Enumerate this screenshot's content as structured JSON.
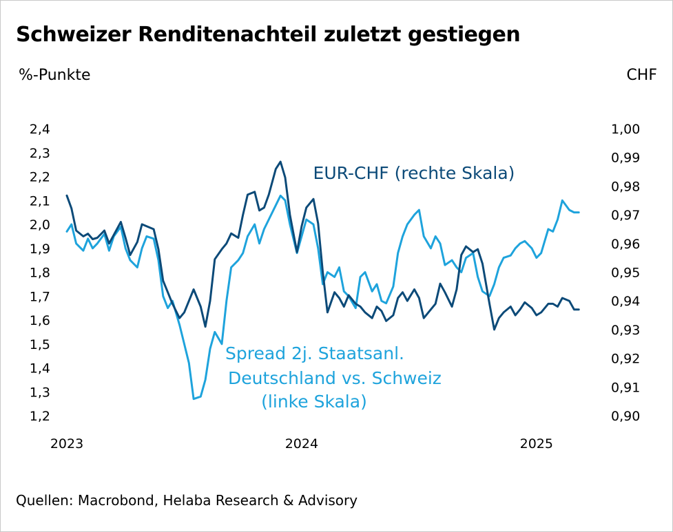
{
  "title": "Schweizer Renditenachteil zuletzt gestiegen",
  "left_unit": "%-Punkte",
  "right_unit": "CHF",
  "source": "Quellen: Macrobond, Helaba Research & Advisory",
  "colors": {
    "eurchf": "#0c4a78",
    "spread": "#1ea3dc",
    "text": "#000000"
  },
  "chart_data": {
    "type": "line",
    "title": "Schweizer Renditenachteil zuletzt gestiegen",
    "x_ticks": [
      "2023",
      "2024",
      "2025"
    ],
    "x_tick_positions": [
      2023.0,
      2024.0,
      2025.0
    ],
    "xlim": [
      2023.0,
      2025.2
    ],
    "y_left": {
      "label": "%-Punkte",
      "lim": [
        1.2,
        2.4
      ],
      "ticks": [
        "1,2",
        "1,3",
        "1,4",
        "1,5",
        "1,6",
        "1,7",
        "1,8",
        "1,9",
        "2,0",
        "2,1",
        "2,2",
        "2,3",
        "2,4"
      ],
      "tick_values": [
        1.2,
        1.3,
        1.4,
        1.5,
        1.6,
        1.7,
        1.8,
        1.9,
        2.0,
        2.1,
        2.2,
        2.3,
        2.4
      ]
    },
    "y_right": {
      "label": "CHF",
      "lim": [
        0.9,
        1.0
      ],
      "ticks": [
        "0,90",
        "0,91",
        "0,92",
        "0,93",
        "0,94",
        "0,95",
        "0,96",
        "0,97",
        "0,98",
        "0,99",
        "1,00"
      ],
      "tick_values": [
        0.9,
        0.91,
        0.92,
        0.93,
        0.94,
        0.95,
        0.96,
        0.97,
        0.98,
        0.99,
        1.0
      ]
    },
    "annotations": {
      "eurchf": [
        "EUR-CHF (rechte Skala)"
      ],
      "spread": [
        "Spread 2j. Staatsanl.",
        "Deutschland vs. Schweiz",
        "(linke Skala)"
      ]
    },
    "series": [
      {
        "name": "EUR-CHF (rechte Skala)",
        "axis": "right",
        "x": [
          2023.0,
          2023.02,
          2023.04,
          2023.07,
          2023.09,
          2023.11,
          2023.13,
          2023.16,
          2023.18,
          2023.2,
          2023.23,
          2023.25,
          2023.27,
          2023.3,
          2023.32,
          2023.34,
          2023.37,
          2023.39,
          2023.41,
          2023.43,
          2023.45,
          2023.48,
          2023.5,
          2023.52,
          2023.54,
          2023.57,
          2023.59,
          2023.61,
          2023.63,
          2023.66,
          2023.68,
          2023.7,
          2023.73,
          2023.75,
          2023.77,
          2023.8,
          2023.82,
          2023.84,
          2023.86,
          2023.89,
          2023.91,
          2023.93,
          2023.95,
          2023.98,
          2024.0,
          2024.02,
          2024.05,
          2024.07,
          2024.09,
          2024.11,
          2024.14,
          2024.16,
          2024.18,
          2024.2,
          2024.23,
          2024.25,
          2024.27,
          2024.3,
          2024.32,
          2024.34,
          2024.36,
          2024.39,
          2024.41,
          2024.43,
          2024.45,
          2024.48,
          2024.5,
          2024.52,
          2024.55,
          2024.57,
          2024.59,
          2024.61,
          2024.64,
          2024.66,
          2024.68,
          2024.7,
          2024.73,
          2024.75,
          2024.77,
          2024.8,
          2024.82,
          2024.84,
          2024.86,
          2024.89,
          2024.91,
          2024.93,
          2024.95,
          2024.98,
          2025.0,
          2025.02,
          2025.05,
          2025.07,
          2025.09,
          2025.11,
          2025.14,
          2025.16,
          2025.18
        ],
        "values": [
          0.9767,
          0.9722,
          0.9645,
          0.9625,
          0.9634,
          0.9615,
          0.962,
          0.9645,
          0.96,
          0.963,
          0.9675,
          0.962,
          0.956,
          0.9605,
          0.9667,
          0.966,
          0.965,
          0.958,
          0.947,
          0.943,
          0.939,
          0.934,
          0.936,
          0.94,
          0.944,
          0.938,
          0.931,
          0.94,
          0.9545,
          0.958,
          0.96,
          0.9635,
          0.962,
          0.97,
          0.977,
          0.978,
          0.9715,
          0.9725,
          0.977,
          0.986,
          0.9885,
          0.983,
          0.97,
          0.957,
          0.966,
          0.9725,
          0.9755,
          0.967,
          0.95,
          0.936,
          0.943,
          0.941,
          0.938,
          0.942,
          0.939,
          0.938,
          0.936,
          0.934,
          0.938,
          0.9365,
          0.933,
          0.935,
          0.941,
          0.943,
          0.94,
          0.944,
          0.941,
          0.934,
          0.937,
          0.939,
          0.946,
          0.943,
          0.938,
          0.944,
          0.956,
          0.959,
          0.957,
          0.958,
          0.953,
          0.939,
          0.93,
          0.934,
          0.936,
          0.938,
          0.935,
          0.937,
          0.9395,
          0.9375,
          0.935,
          0.936,
          0.939,
          0.939,
          0.938,
          0.941,
          0.94,
          0.937,
          0.937
        ]
      },
      {
        "name": "Spread 2j. Staatsanl. Deutschland vs. Schweiz (linke Skala)",
        "axis": "left",
        "x": [
          2023.0,
          2023.02,
          2023.04,
          2023.07,
          2023.09,
          2023.11,
          2023.13,
          2023.16,
          2023.18,
          2023.2,
          2023.23,
          2023.25,
          2023.27,
          2023.3,
          2023.32,
          2023.34,
          2023.37,
          2023.39,
          2023.41,
          2023.43,
          2023.45,
          2023.48,
          2023.5,
          2023.52,
          2023.54,
          2023.57,
          2023.59,
          2023.61,
          2023.63,
          2023.66,
          2023.68,
          2023.7,
          2023.73,
          2023.75,
          2023.77,
          2023.8,
          2023.82,
          2023.84,
          2023.86,
          2023.89,
          2023.91,
          2023.93,
          2023.95,
          2023.98,
          2024.0,
          2024.02,
          2024.05,
          2024.07,
          2024.09,
          2024.11,
          2024.14,
          2024.16,
          2024.18,
          2024.2,
          2024.23,
          2024.25,
          2024.27,
          2024.3,
          2024.32,
          2024.34,
          2024.36,
          2024.39,
          2024.41,
          2024.43,
          2024.45,
          2024.48,
          2024.5,
          2024.52,
          2024.55,
          2024.57,
          2024.59,
          2024.61,
          2024.64,
          2024.66,
          2024.68,
          2024.7,
          2024.73,
          2024.75,
          2024.77,
          2024.8,
          2024.82,
          2024.84,
          2024.86,
          2024.89,
          2024.91,
          2024.93,
          2024.95,
          2024.98,
          2025.0,
          2025.02,
          2025.05,
          2025.07,
          2025.09,
          2025.11,
          2025.14,
          2025.16,
          2025.18
        ],
        "values": [
          1.97,
          2.0,
          1.92,
          1.89,
          1.94,
          1.9,
          1.92,
          1.96,
          1.89,
          1.95,
          1.99,
          1.9,
          1.85,
          1.82,
          1.9,
          1.95,
          1.94,
          1.85,
          1.7,
          1.65,
          1.68,
          1.58,
          1.5,
          1.42,
          1.27,
          1.28,
          1.35,
          1.48,
          1.55,
          1.5,
          1.68,
          1.82,
          1.85,
          1.88,
          1.95,
          2.0,
          1.92,
          1.98,
          2.02,
          2.08,
          2.12,
          2.1,
          2.0,
          1.88,
          1.95,
          2.02,
          2.0,
          1.9,
          1.75,
          1.8,
          1.78,
          1.82,
          1.72,
          1.7,
          1.65,
          1.78,
          1.8,
          1.72,
          1.75,
          1.68,
          1.67,
          1.74,
          1.88,
          1.95,
          2.0,
          2.04,
          2.06,
          1.95,
          1.9,
          1.95,
          1.92,
          1.83,
          1.85,
          1.82,
          1.8,
          1.86,
          1.88,
          1.78,
          1.72,
          1.7,
          1.75,
          1.82,
          1.86,
          1.87,
          1.9,
          1.92,
          1.93,
          1.9,
          1.86,
          1.88,
          1.98,
          1.97,
          2.02,
          2.1,
          2.06,
          2.05,
          2.05
        ]
      }
    ]
  }
}
